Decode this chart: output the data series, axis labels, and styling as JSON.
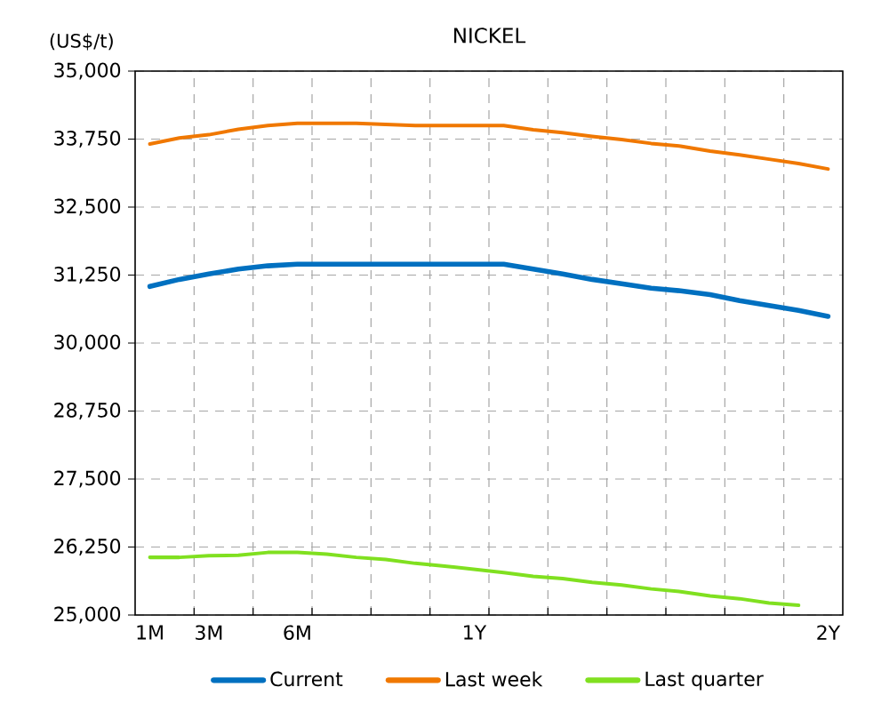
{
  "chart_data": {
    "type": "line",
    "title": "NICKEL",
    "ylabel": "(US$/t)",
    "categories": [
      "1M",
      null,
      "3M",
      null,
      null,
      "6M",
      null,
      null,
      null,
      null,
      null,
      "1Y",
      null,
      null,
      null,
      null,
      null,
      null,
      null,
      null,
      null,
      null,
      null,
      "2Y"
    ],
    "series": [
      {
        "name": "Current",
        "color": "#0070c0",
        "values": [
          31040,
          31170,
          31270,
          31360,
          31420,
          31450,
          31450,
          31450,
          31450,
          31450,
          31450,
          31450,
          31450,
          31360,
          31270,
          31170,
          31090,
          31010,
          30960,
          30890,
          30780,
          30690,
          30600,
          30490
        ]
      },
      {
        "name": "Last week",
        "color": "#f07800",
        "values": [
          33660,
          33770,
          33830,
          33930,
          34000,
          34040,
          34040,
          34040,
          34020,
          34000,
          34000,
          34000,
          34000,
          33920,
          33870,
          33800,
          33740,
          33670,
          33620,
          33530,
          33460,
          33380,
          33300,
          33200
        ]
      },
      {
        "name": "Last quarter",
        "color": "#80e020",
        "values": [
          26060,
          26060,
          26090,
          26100,
          26150,
          26150,
          26120,
          26060,
          26020,
          25950,
          25900,
          25840,
          25780,
          25710,
          25670,
          25600,
          25550,
          25480,
          25430,
          25350,
          25300,
          25220,
          25180,
          null
        ]
      }
    ],
    "ylim": [
      25000,
      35000
    ],
    "yticks": [
      {
        "value": 25000,
        "label": "25,000"
      },
      {
        "value": 26250,
        "label": "26,250"
      },
      {
        "value": 27500,
        "label": "27,500"
      },
      {
        "value": 28750,
        "label": "28,750"
      },
      {
        "value": 30000,
        "label": "30,000"
      },
      {
        "value": 31250,
        "label": "31,250"
      },
      {
        "value": 32500,
        "label": "32,500"
      },
      {
        "value": 33750,
        "label": "33,750"
      },
      {
        "value": 35000,
        "label": "35,000"
      }
    ],
    "grid": true,
    "legend": "bottom",
    "marker": "none",
    "line_style": "solid"
  }
}
